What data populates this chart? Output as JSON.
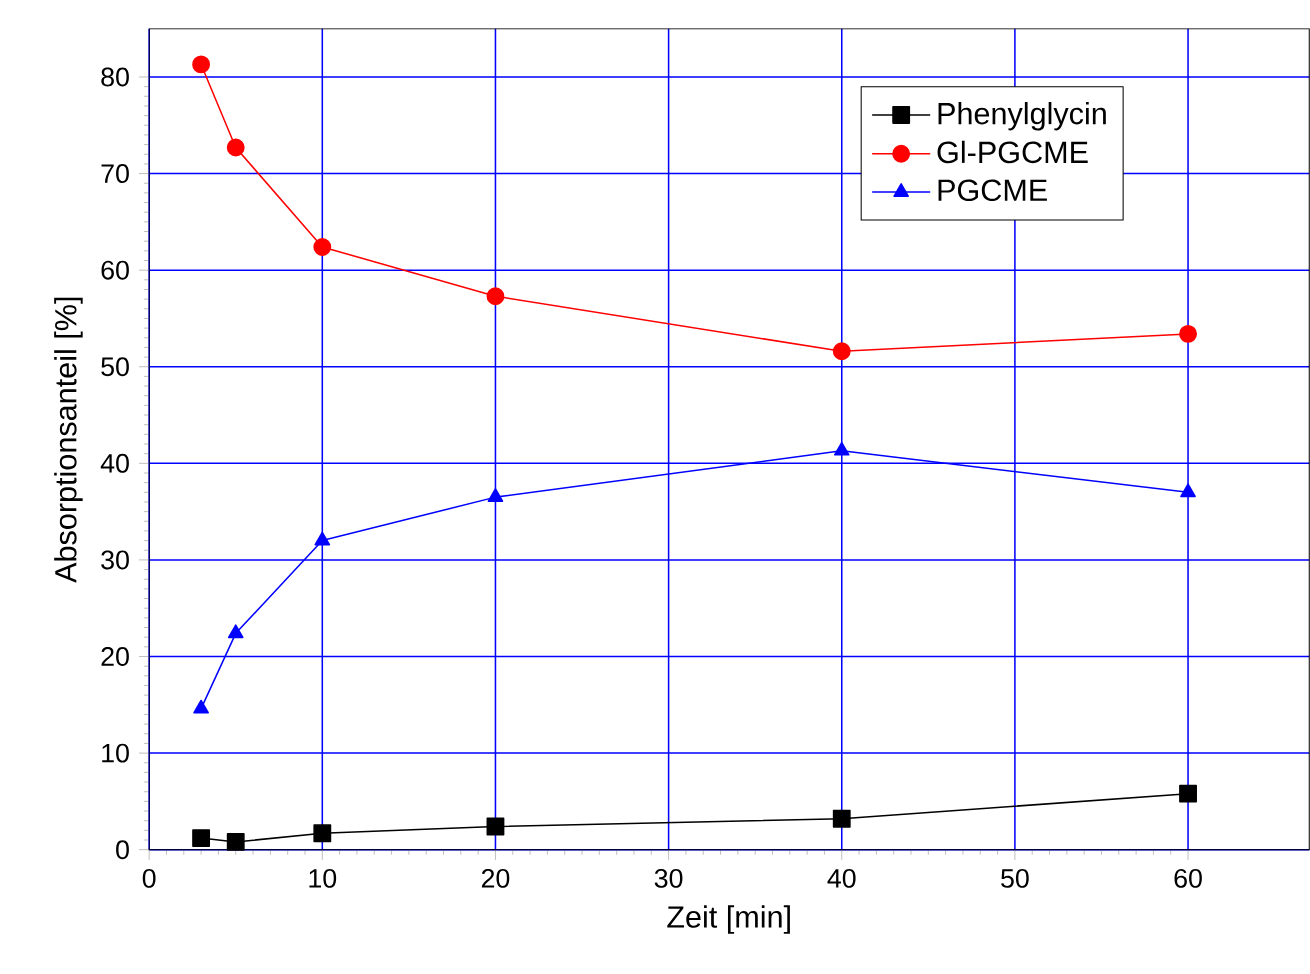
{
  "chart_data": {
    "type": "line",
    "xlabel": "Zeit [min]",
    "ylabel": "Absorptionsanteil [%]",
    "x": [
      3,
      5,
      10,
      20,
      40,
      60
    ],
    "series": [
      {
        "name": "Phenylglycin",
        "color": "#000000",
        "marker": "square",
        "values": [
          1.2,
          0.8,
          1.7,
          2.4,
          3.2,
          5.8
        ]
      },
      {
        "name": "Gl-PGCME",
        "color": "#ff0000",
        "marker": "circle",
        "values": [
          81.3,
          72.7,
          62.4,
          57.3,
          51.6,
          53.4
        ]
      },
      {
        "name": "PGCME",
        "color": "#0000ff",
        "marker": "triangle",
        "values": [
          14.6,
          22.4,
          32.0,
          36.5,
          41.3,
          37.0
        ]
      }
    ],
    "xlim": [
      0,
      67
    ],
    "ylim": [
      0,
      85
    ],
    "xticks": [
      0,
      10,
      20,
      30,
      40,
      50,
      60
    ],
    "yticks": [
      0,
      10,
      20,
      30,
      40,
      50,
      60,
      70,
      80
    ],
    "grid": true,
    "legend": "top right",
    "line_style": "solid"
  }
}
